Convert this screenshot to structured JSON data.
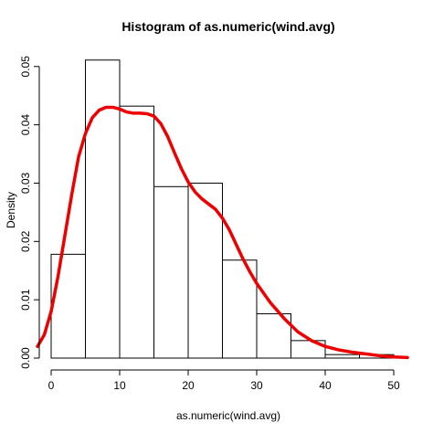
{
  "chart_data": {
    "type": "bar",
    "title": "Histogram of as.numeric(wind.avg)",
    "xlabel": "as.numeric(wind.avg)",
    "ylabel": "Density",
    "bin_edges": [
      0,
      5,
      10,
      15,
      20,
      25,
      30,
      35,
      40,
      45,
      50
    ],
    "values": [
      0.0178,
      0.0511,
      0.0432,
      0.0294,
      0.03,
      0.0168,
      0.0076,
      0.003,
      0.0006,
      0.0006
    ],
    "xlim": [
      0,
      52
    ],
    "ylim": [
      0,
      0.052
    ],
    "x_ticks": [
      0,
      10,
      20,
      30,
      40,
      50
    ],
    "x_tick_labels": [
      "0",
      "10",
      "20",
      "30",
      "40",
      "50"
    ],
    "y_ticks": [
      0.0,
      0.01,
      0.02,
      0.03,
      0.04,
      0.05
    ],
    "y_tick_labels": [
      "0.00",
      "0.01",
      "0.02",
      "0.03",
      "0.04",
      "0.05"
    ],
    "bar_fill": "#ffffff",
    "bar_stroke": "#000000",
    "grid": false,
    "legend": "none",
    "density_curve": {
      "color": "#ee0000",
      "x": [
        -2,
        -1,
        0,
        1,
        2,
        3,
        4,
        5,
        6,
        7,
        8,
        9,
        10,
        11,
        12,
        13,
        14,
        15,
        16,
        17,
        18,
        19,
        20,
        21,
        22,
        23,
        24,
        25,
        26,
        27,
        28,
        29,
        30,
        32,
        34,
        36,
        38,
        40,
        42,
        44,
        46,
        48,
        50,
        52
      ],
      "y": [
        0.002,
        0.004,
        0.008,
        0.014,
        0.021,
        0.028,
        0.0345,
        0.0385,
        0.0412,
        0.0425,
        0.043,
        0.043,
        0.0427,
        0.0422,
        0.042,
        0.042,
        0.0419,
        0.0415,
        0.0402,
        0.038,
        0.0352,
        0.0325,
        0.0302,
        0.0285,
        0.0273,
        0.0264,
        0.0255,
        0.024,
        0.022,
        0.0195,
        0.017,
        0.0148,
        0.0128,
        0.0095,
        0.0068,
        0.0045,
        0.003,
        0.002,
        0.0014,
        0.001,
        0.0007,
        0.0004,
        0.0002,
        0.0001
      ]
    }
  }
}
